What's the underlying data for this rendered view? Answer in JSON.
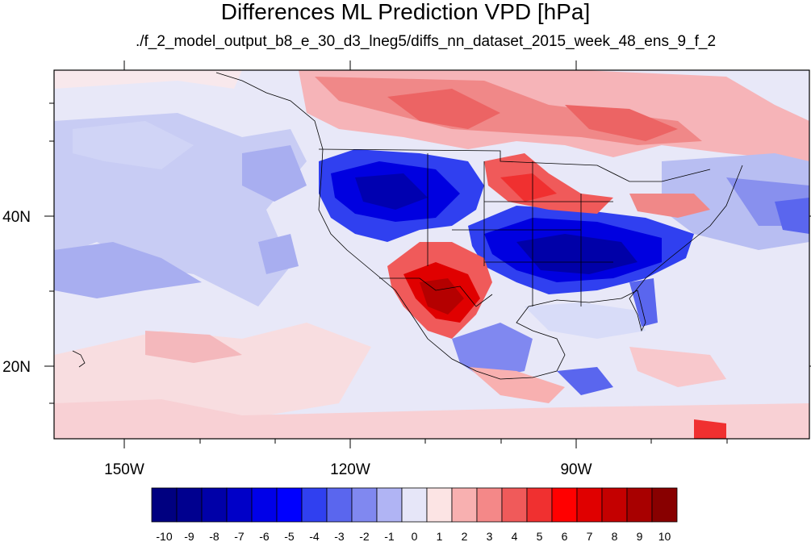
{
  "title": "Differences ML Prediction VPD [hPa]",
  "subtitle": "./f_2_model_output_b8_e_30_d3_lneg5/diffs_nn_dataset_2015_week_48_ens_9_f_2",
  "map": {
    "projection": "cylindrical equidistant",
    "lon_range": [
      -159.3,
      -60.9
    ],
    "lat_range": [
      9.8,
      59.2
    ],
    "lon_ticks": [
      {
        "label": "150W"
      },
      {
        "label": "120W"
      },
      {
        "label": "90W"
      }
    ],
    "lat_ticks": [
      {
        "label": "40N"
      },
      {
        "label": "20N"
      }
    ],
    "features": [
      "coastlines",
      "US state boundaries",
      "Mexico state boundaries"
    ]
  },
  "colorbar": {
    "tick_labels": [
      "-10",
      "-9",
      "-8",
      "-7",
      "-6",
      "-5",
      "-4",
      "-3",
      "-2",
      "-1",
      "0",
      "1",
      "2",
      "3",
      "4",
      "5",
      "6",
      "7",
      "8",
      "9",
      "10"
    ],
    "colors": [
      "#000080",
      "#00008f",
      "#0000a8",
      "#0000c8",
      "#0000e8",
      "#0000ff",
      "#3040f0",
      "#5a66ee",
      "#8088f0",
      "#b0b4f4",
      "#e6e6f8",
      "#fce4e4",
      "#f8b0b0",
      "#f48888",
      "#f05a5a",
      "#f03030",
      "#ff0000",
      "#e00000",
      "#c40000",
      "#a80000",
      "#880000"
    ]
  }
}
